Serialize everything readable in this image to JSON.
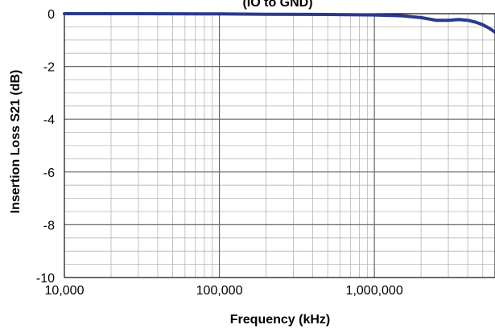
{
  "chart_data": {
    "type": "line",
    "title": "(IO to GND)",
    "xlabel": "Frequency (kHz)",
    "ylabel": "Insertion Loss S21 (dB)",
    "x_scale": "log",
    "xlim": [
      10000,
      6000000
    ],
    "ylim": [
      -10,
      0
    ],
    "x_ticks": [
      10000,
      100000,
      1000000
    ],
    "x_tick_labels": [
      "10,000",
      "100,000",
      "1,000,000"
    ],
    "y_ticks": [
      0,
      -2,
      -4,
      -6,
      -8,
      -10
    ],
    "y_tick_labels": [
      "0",
      "-2",
      "-4",
      "-6",
      "-8",
      "-10"
    ],
    "grid": true,
    "legend": "none",
    "series_color": "#2a3a8c",
    "series": [
      {
        "x": [
          10000,
          30000,
          100000,
          200000,
          500000,
          1000000,
          1500000,
          2000000,
          2500000,
          3000000,
          3500000,
          4000000,
          4500000,
          5000000,
          5500000,
          6000000
        ],
        "y": [
          0,
          0,
          -0.01,
          -0.02,
          -0.03,
          -0.05,
          -0.08,
          -0.15,
          -0.25,
          -0.25,
          -0.22,
          -0.25,
          -0.32,
          -0.42,
          -0.55,
          -0.7
        ]
      }
    ]
  }
}
